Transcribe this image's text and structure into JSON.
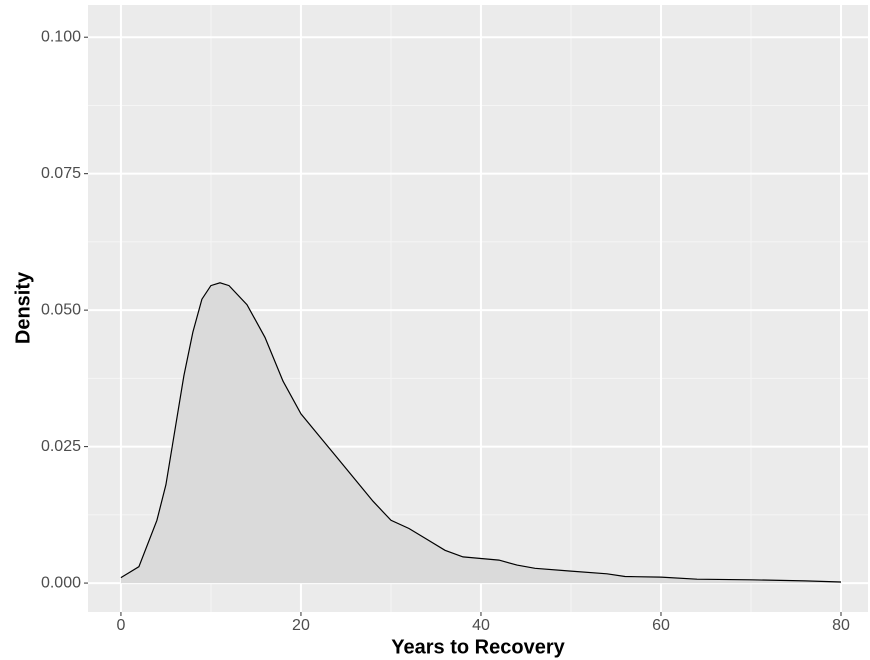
{
  "chart_data": {
    "type": "density",
    "x_label": "Years to Recovery",
    "y_label": "Density",
    "x": [
      0,
      2,
      4,
      5,
      6,
      7,
      8,
      9,
      10,
      11,
      12,
      14,
      16,
      18,
      20,
      22,
      24,
      26,
      28,
      30,
      32,
      34,
      36,
      38,
      40,
      42,
      44,
      46,
      50,
      54,
      56,
      60,
      64,
      70,
      76,
      80
    ],
    "values": [
      0.001,
      0.003,
      0.0115,
      0.018,
      0.028,
      0.038,
      0.046,
      0.052,
      0.0545,
      0.055,
      0.0545,
      0.051,
      0.045,
      0.037,
      0.031,
      0.027,
      0.023,
      0.019,
      0.015,
      0.0115,
      0.01,
      0.008,
      0.006,
      0.0048,
      0.0045,
      0.0042,
      0.0033,
      0.0027,
      0.0022,
      0.0017,
      0.0012,
      0.0011,
      0.0007,
      0.0006,
      0.0004,
      0.0002
    ],
    "color": "#000000",
    "fill": "#dadada",
    "xlim": [
      -3.66,
      83.0
    ],
    "ylim": [
      -0.0053,
      0.1059
    ],
    "xticks": [
      0,
      20,
      40,
      60,
      80
    ],
    "x_minor": [
      10,
      30,
      50,
      70
    ],
    "yticks": [
      {
        "value": 0,
        "label": "0.000"
      },
      {
        "value": 0.025,
        "label": "0.025"
      },
      {
        "value": 0.05,
        "label": "0.050"
      },
      {
        "value": 0.075,
        "label": "0.075"
      },
      {
        "value": 0.1,
        "label": "0.100"
      }
    ],
    "y_minor": [
      0.0125,
      0.0375,
      0.0625,
      0.0875
    ],
    "grid": true
  }
}
